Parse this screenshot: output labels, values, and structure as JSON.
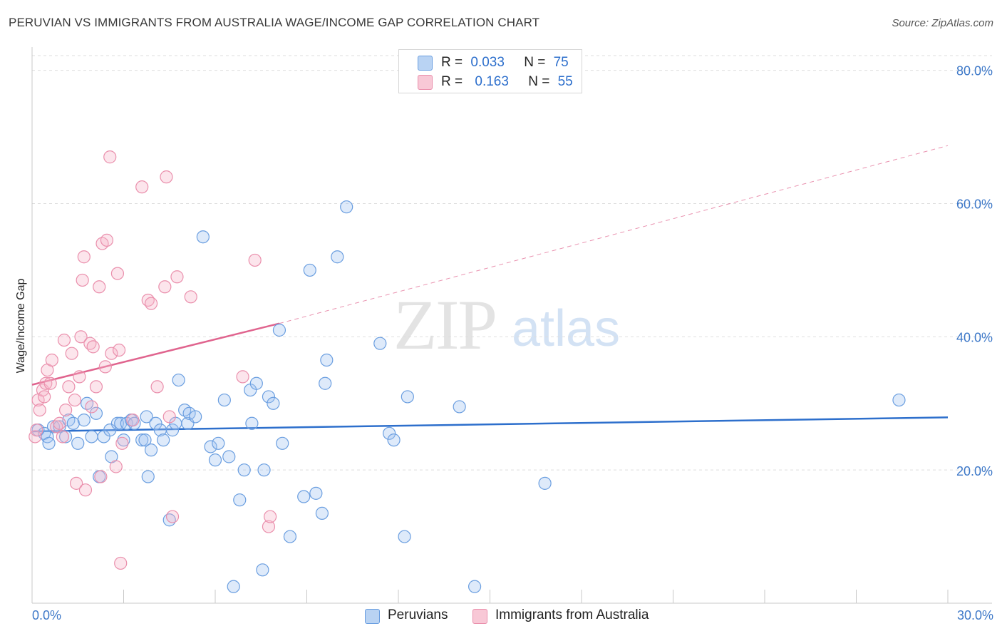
{
  "title": "PERUVIAN VS IMMIGRANTS FROM AUSTRALIA WAGE/INCOME GAP CORRELATION CHART",
  "source": "Source: ZipAtlas.com",
  "watermark": {
    "zip": "ZIP",
    "atlas": "atlas"
  },
  "legend": {
    "r_label": "R =",
    "n_label": "N =",
    "rows": [
      {
        "r": "0.033",
        "n": "75",
        "color": "#b9d3f3",
        "border": "#6a9ee0"
      },
      {
        "r": "0.163",
        "n": "55",
        "color": "#f8c8d6",
        "border": "#ea8fac"
      }
    ]
  },
  "chart_data": {
    "type": "scatter",
    "title": "PERUVIAN VS IMMIGRANTS FROM AUSTRALIA WAGE/INCOME GAP CORRELATION CHART",
    "xlabel": "",
    "ylabel": "Wage/Income Gap",
    "xlim": [
      0,
      30
    ],
    "ylim": [
      0,
      82
    ],
    "x_tick_labels": [
      "0.0%",
      "30.0%"
    ],
    "y_ticks": [
      20,
      40,
      60,
      80
    ],
    "y_tick_labels": [
      "20.0%",
      "40.0%",
      "60.0%",
      "80.0%"
    ],
    "grid": true,
    "series": [
      {
        "name": "Peruvians",
        "color": "#6a9ee0",
        "fill": "rgba(160,196,240,0.35)",
        "trend": {
          "x": [
            0,
            30
          ],
          "y": [
            25.8,
            27.9
          ],
          "color": "#2d6fcc",
          "style": "solid"
        },
        "points": [
          [
            0.2,
            26
          ],
          [
            0.4,
            25.5
          ],
          [
            0.5,
            25
          ],
          [
            0.55,
            24
          ],
          [
            0.7,
            26.5
          ],
          [
            0.9,
            26.5
          ],
          [
            1.1,
            25
          ],
          [
            1.2,
            27.5
          ],
          [
            1.35,
            27
          ],
          [
            1.5,
            24
          ],
          [
            1.7,
            27.5
          ],
          [
            1.8,
            30
          ],
          [
            1.95,
            25
          ],
          [
            2.1,
            28.5
          ],
          [
            2.2,
            19
          ],
          [
            2.35,
            25
          ],
          [
            2.55,
            26
          ],
          [
            2.6,
            22
          ],
          [
            2.8,
            27
          ],
          [
            2.9,
            27
          ],
          [
            3.0,
            24.5
          ],
          [
            3.1,
            27
          ],
          [
            3.25,
            27.5
          ],
          [
            3.35,
            27
          ],
          [
            3.6,
            24.5
          ],
          [
            3.7,
            24.5
          ],
          [
            3.75,
            28
          ],
          [
            3.8,
            19
          ],
          [
            3.9,
            23
          ],
          [
            4.05,
            27
          ],
          [
            4.2,
            26
          ],
          [
            4.3,
            24.5
          ],
          [
            4.5,
            12.5
          ],
          [
            4.6,
            26
          ],
          [
            4.7,
            27
          ],
          [
            4.8,
            33.5
          ],
          [
            5.0,
            29
          ],
          [
            5.1,
            27
          ],
          [
            5.15,
            28.5
          ],
          [
            5.35,
            28
          ],
          [
            5.6,
            55
          ],
          [
            5.85,
            23.5
          ],
          [
            6.0,
            21.5
          ],
          [
            6.1,
            24
          ],
          [
            6.3,
            30.5
          ],
          [
            6.45,
            22
          ],
          [
            6.6,
            2.5
          ],
          [
            6.8,
            15.5
          ],
          [
            6.95,
            20
          ],
          [
            7.15,
            32
          ],
          [
            7.2,
            27
          ],
          [
            7.35,
            33
          ],
          [
            7.55,
            5
          ],
          [
            7.6,
            20
          ],
          [
            7.75,
            31
          ],
          [
            7.9,
            30
          ],
          [
            8.1,
            41
          ],
          [
            8.2,
            24
          ],
          [
            8.45,
            10
          ],
          [
            8.9,
            16
          ],
          [
            9.1,
            50
          ],
          [
            9.3,
            16.5
          ],
          [
            9.5,
            13.5
          ],
          [
            9.6,
            33
          ],
          [
            9.65,
            36.5
          ],
          [
            10.0,
            52
          ],
          [
            10.3,
            59.5
          ],
          [
            11.4,
            39
          ],
          [
            11.7,
            25.5
          ],
          [
            11.85,
            24.5
          ],
          [
            12.2,
            10
          ],
          [
            12.3,
            31
          ],
          [
            14.0,
            29.5
          ],
          [
            14.5,
            2.5
          ],
          [
            16.8,
            18
          ],
          [
            28.4,
            30.5
          ]
        ]
      },
      {
        "name": "Immigrants from Australia",
        "color": "#ea8fac",
        "fill": "rgba(246,180,200,0.35)",
        "trend": {
          "x": [
            0,
            8.1
          ],
          "y": [
            32.8,
            42
          ],
          "x_dashed_end": 30,
          "y_dashed_end": 68.7,
          "color": "#e0648e",
          "style": "solid-then-dashed"
        },
        "points": [
          [
            0.1,
            25
          ],
          [
            0.15,
            26
          ],
          [
            0.2,
            30.5
          ],
          [
            0.25,
            29
          ],
          [
            0.35,
            32
          ],
          [
            0.4,
            31
          ],
          [
            0.45,
            33
          ],
          [
            0.5,
            35
          ],
          [
            0.6,
            33
          ],
          [
            0.65,
            36.5
          ],
          [
            0.8,
            26.5
          ],
          [
            0.9,
            27
          ],
          [
            1.0,
            25
          ],
          [
            1.05,
            39.5
          ],
          [
            1.1,
            29
          ],
          [
            1.2,
            32.5
          ],
          [
            1.3,
            37.5
          ],
          [
            1.4,
            30.5
          ],
          [
            1.45,
            18
          ],
          [
            1.55,
            34
          ],
          [
            1.6,
            40
          ],
          [
            1.65,
            48.5
          ],
          [
            1.7,
            52
          ],
          [
            1.75,
            17
          ],
          [
            1.9,
            39
          ],
          [
            1.95,
            29.5
          ],
          [
            2.0,
            38.5
          ],
          [
            2.1,
            32.5
          ],
          [
            2.2,
            47.5
          ],
          [
            2.25,
            19
          ],
          [
            2.3,
            54
          ],
          [
            2.4,
            35.5
          ],
          [
            2.45,
            54.5
          ],
          [
            2.55,
            67
          ],
          [
            2.6,
            37.5
          ],
          [
            2.75,
            20.5
          ],
          [
            2.8,
            49.5
          ],
          [
            2.85,
            38
          ],
          [
            2.9,
            6
          ],
          [
            2.95,
            24
          ],
          [
            3.3,
            27.5
          ],
          [
            3.6,
            62.5
          ],
          [
            3.8,
            45.5
          ],
          [
            3.9,
            45
          ],
          [
            4.1,
            32.5
          ],
          [
            4.35,
            47.5
          ],
          [
            4.4,
            64
          ],
          [
            4.5,
            28
          ],
          [
            4.6,
            13
          ],
          [
            4.75,
            49
          ],
          [
            5.2,
            46
          ],
          [
            6.9,
            34
          ],
          [
            7.3,
            51.5
          ],
          [
            7.75,
            11.5
          ],
          [
            7.8,
            13
          ]
        ]
      }
    ]
  },
  "bottom_legend": [
    {
      "label": "Peruvians",
      "color": "#b9d3f3",
      "border": "#6a9ee0"
    },
    {
      "label": "Immigrants from Australia",
      "color": "#f8c8d6",
      "border": "#ea8fac"
    }
  ]
}
